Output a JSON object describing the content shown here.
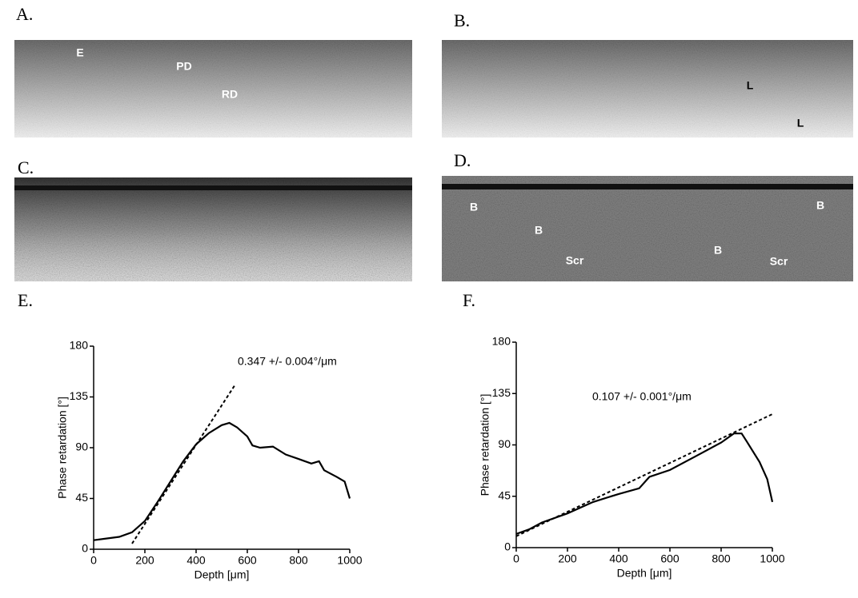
{
  "panel_labels": [
    "A.",
    "B.",
    "C.",
    "D.",
    "E.",
    "F."
  ],
  "panel_a_labels": [
    "E",
    "PD",
    "RD"
  ],
  "panel_b_labels": [
    "L",
    "L"
  ],
  "panel_d_labels": [
    "B",
    "B",
    "Scr",
    "B",
    "Scr",
    "B"
  ],
  "chart_data": [
    {
      "type": "line",
      "annotation": "0.347 +/- 0.004°/μm",
      "x_label": "Depth [μm]",
      "y_label": "Phase retardation [°]",
      "xlim": [
        0,
        1000
      ],
      "ylim": [
        0,
        180
      ],
      "xticks": [
        0,
        200,
        400,
        600,
        800,
        1000
      ],
      "yticks": [
        0,
        45,
        90,
        135,
        180
      ],
      "series": [
        {
          "color": "#000000",
          "style": "solid",
          "x": [
            0,
            100,
            150,
            200,
            250,
            300,
            350,
            400,
            450,
            500,
            530,
            560,
            600,
            620,
            650,
            700,
            750,
            800,
            850,
            880,
            900,
            950,
            980,
            1000
          ],
          "values": [
            8,
            11,
            15,
            25,
            42,
            60,
            78,
            93,
            103,
            110,
            112,
            108,
            100,
            92,
            90,
            91,
            84,
            80,
            76,
            78,
            70,
            64,
            60,
            45
          ]
        },
        {
          "color": "#000000",
          "style": "dashed",
          "x": [
            150,
            550
          ],
          "values": [
            5,
            145
          ]
        }
      ]
    },
    {
      "type": "line",
      "annotation": "0.107 +/- 0.001°/μm",
      "x_label": "Depth [μm]",
      "y_label": "Phase retardation [°]",
      "xlim": [
        0,
        1000
      ],
      "ylim": [
        0,
        180
      ],
      "xticks": [
        0,
        200,
        400,
        600,
        800,
        1000
      ],
      "yticks": [
        0,
        45,
        90,
        135,
        180
      ],
      "series": [
        {
          "color": "#000000",
          "style": "solid",
          "x": [
            0,
            50,
            100,
            200,
            300,
            400,
            480,
            520,
            600,
            700,
            800,
            850,
            880,
            900,
            950,
            980,
            1000
          ],
          "values": [
            12,
            16,
            22,
            30,
            40,
            47,
            52,
            62,
            68,
            80,
            92,
            100,
            100,
            93,
            75,
            60,
            40
          ]
        },
        {
          "color": "#000000",
          "style": "dashed",
          "x": [
            0,
            1000
          ],
          "values": [
            10,
            117
          ]
        }
      ]
    }
  ]
}
